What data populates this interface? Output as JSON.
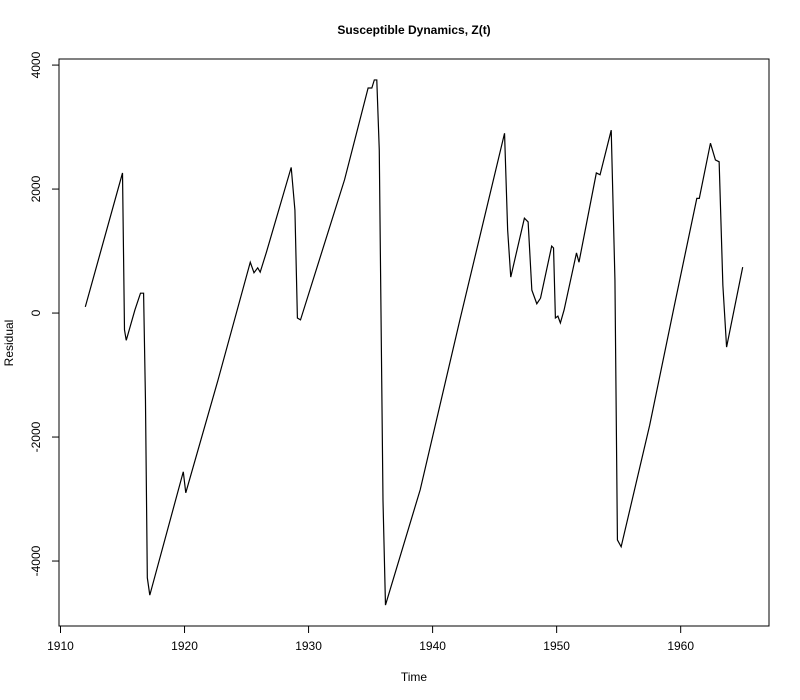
{
  "chart_data": {
    "type": "line",
    "title": "Susceptible Dynamics, Z(t)",
    "x_label": "Time",
    "y_label": "Residual",
    "color": "#000000",
    "x": [
      1912.0,
      1915.0,
      1915.16,
      1915.3,
      1916.0,
      1916.45,
      1916.7,
      1916.85,
      1917.0,
      1917.2,
      1919.9,
      1920.1,
      1922.7,
      1925.3,
      1925.6,
      1925.9,
      1926.1,
      1926.6,
      1928.6,
      1928.9,
      1929.1,
      1929.35,
      1932.9,
      1934.8,
      1935.1,
      1935.3,
      1935.5,
      1935.7,
      1936.0,
      1936.2,
      1939.0,
      1942.2,
      1945.8,
      1946.05,
      1946.3,
      1947.4,
      1947.7,
      1948.0,
      1948.4,
      1948.7,
      1949.6,
      1949.75,
      1949.9,
      1950.1,
      1950.3,
      1950.6,
      1951.6,
      1951.8,
      1953.2,
      1953.5,
      1954.4,
      1954.7,
      1954.9,
      1955.2,
      1957.5,
      1959.5,
      1961.3,
      1961.5,
      1962.4,
      1962.8,
      1963.1,
      1963.4,
      1963.7,
      1965.0
    ],
    "values": [
      100,
      2260,
      -270,
      -440,
      50,
      320,
      320,
      -1400,
      -4270,
      -4550,
      -2560,
      -2900,
      -1080,
      820,
      650,
      730,
      660,
      980,
      2350,
      1660,
      -80,
      -110,
      2150,
      3630,
      3630,
      3760,
      3760,
      2630,
      -3020,
      -4710,
      -2850,
      -110,
      2900,
      1340,
      580,
      1530,
      1470,
      370,
      150,
      240,
      1080,
      1050,
      -80,
      -50,
      -160,
      50,
      970,
      820,
      2260,
      2230,
      2950,
      530,
      -3660,
      -3770,
      -1810,
      130,
      1850,
      1850,
      2740,
      2470,
      2440,
      450,
      -550,
      740
    ],
    "xlim": [
      1909.88,
      1967.12
    ],
    "ylim": [
      -5048,
      4098
    ],
    "xticks": [
      1910,
      1920,
      1930,
      1940,
      1950,
      1960
    ],
    "yticks": [
      -4000,
      -2000,
      0,
      2000,
      4000
    ]
  }
}
